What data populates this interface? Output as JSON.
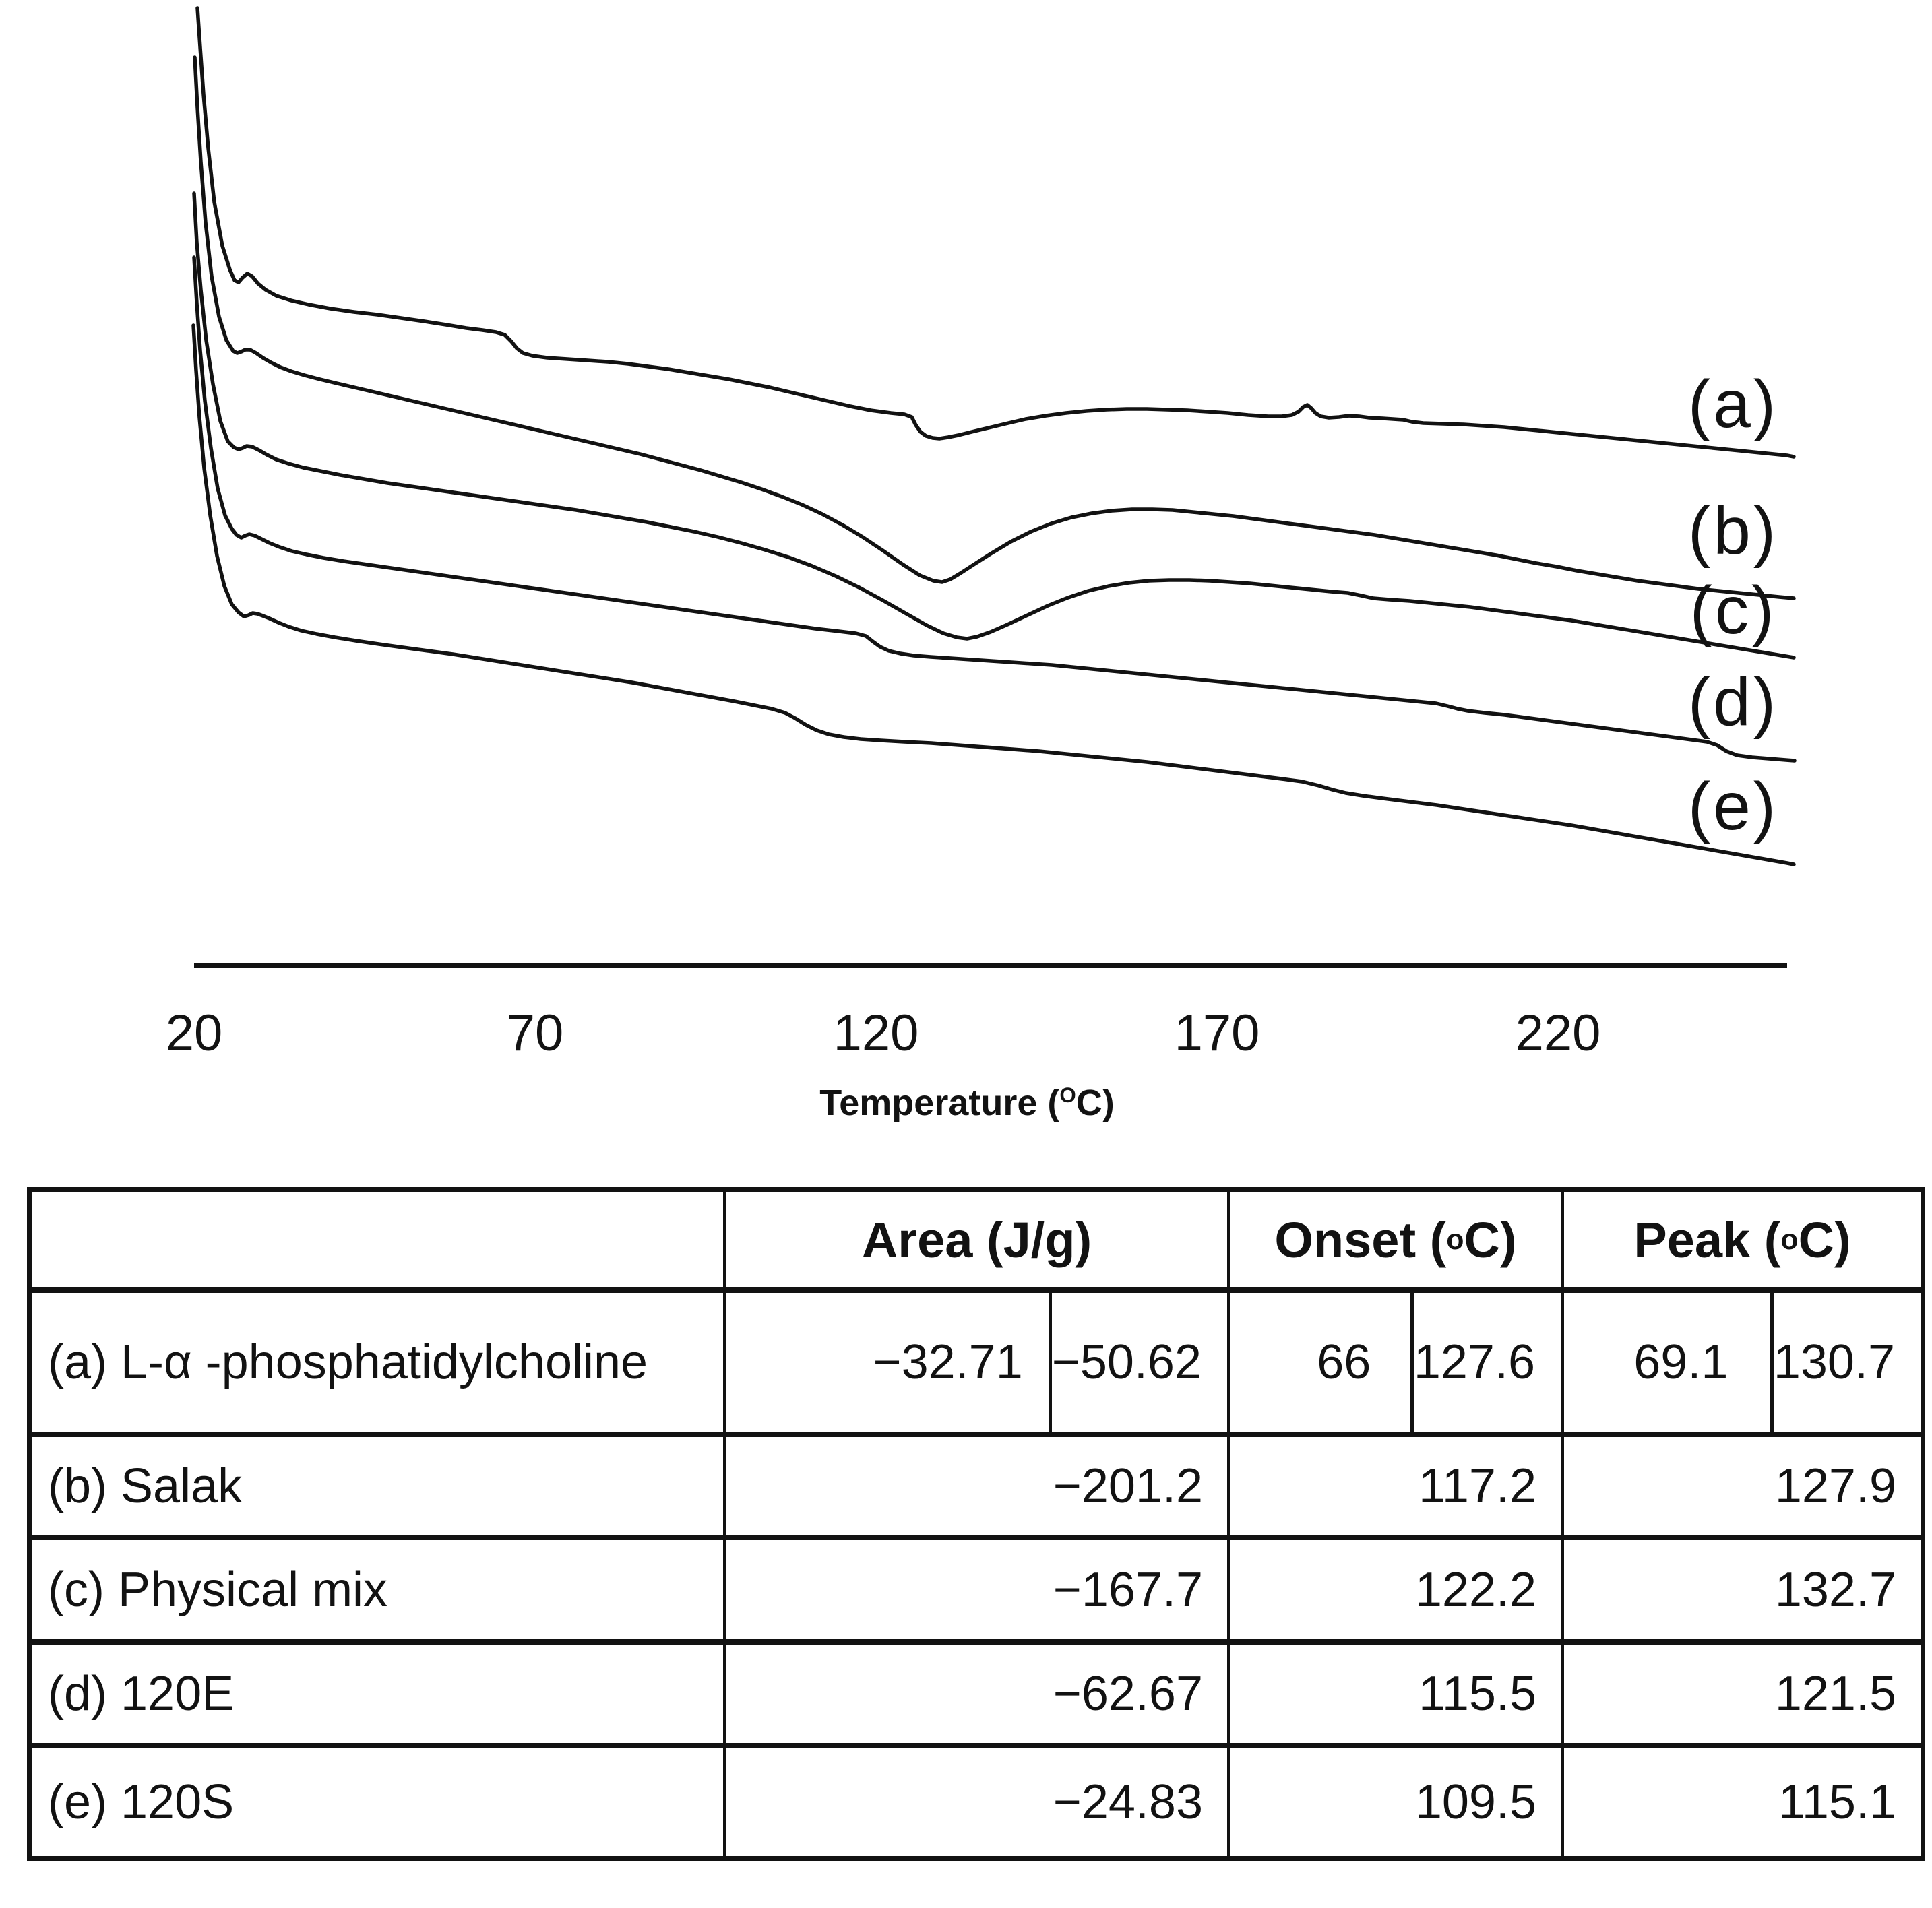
{
  "figure": {
    "background": "#ffffff",
    "ink": "#121212",
    "description": "DSC thermograms of five samples with summary table of thermal events"
  },
  "chart_data": {
    "type": "line",
    "title": "DSC thermogram curves (a)-(e), heat flow offset vertically, endotherm down",
    "xlabel_pre": "Temperature (",
    "xlabel_sup": "O",
    "xlabel_post": "C)",
    "x_ticks": [
      "20",
      "70",
      "120",
      "170",
      "220"
    ],
    "x_tick_values": [
      20,
      70,
      120,
      170,
      220
    ],
    "x_range": [
      20,
      252
    ],
    "ylabel": "",
    "grid": false,
    "legend_position": "inline-right",
    "series": [
      {
        "label": "(a)",
        "sample": "L-α -phosphatidylcholine",
        "area_J_per_g": [
          -32.71,
          -50.62
        ],
        "onset_C": [
          66,
          127.6
        ],
        "peak_C": [
          69.1,
          130.7
        ]
      },
      {
        "label": "(b)",
        "sample": "Salak",
        "area_J_per_g": [
          -201.2
        ],
        "onset_C": [
          117.2
        ],
        "peak_C": [
          127.9
        ]
      },
      {
        "label": "(c)",
        "sample": "Physical mix",
        "area_J_per_g": [
          -167.7
        ],
        "onset_C": [
          122.2
        ],
        "peak_C": [
          132.7
        ]
      },
      {
        "label": "(d)",
        "sample": "120E",
        "area_J_per_g": [
          -62.67
        ],
        "onset_C": [
          115.5
        ],
        "peak_C": [
          121.5
        ]
      },
      {
        "label": "(e)",
        "sample": "120S",
        "area_J_per_g": [
          -24.83
        ],
        "onset_C": [
          109.5
        ],
        "peak_C": [
          115.1
        ]
      }
    ],
    "axis_line": {
      "x1": 288,
      "x2": 2652,
      "y": 1433,
      "width": 8
    },
    "stroke_width": 5.5,
    "curve_paths": [
      "M293 12 L297 70 L302 140 L309 220 L318 300 L330 365 L341 400 L348 416 L354 419 L360 412 L367 406 L374 410 L383 421 L394 430 L410 439 L432 446 L458 452 L490 458 L525 463 L560 467 L595 472 L630 477 L662 482 L692 487 L716 490 L736 493 L749 497 L759 507 L767 517 L776 524 L790 528 L812 531 L842 533 L872 535 L902 537 L932 540 L962 544 L992 548 L1022 553 L1052 558 L1082 563 L1112 569 L1142 575 L1172 582 L1202 589 L1232 596 L1262 603 L1292 609 L1322 613 L1342 615 L1353 619 L1359 631 L1366 641 L1374 647 L1384 650 L1394 651 L1407 649 L1422 646 L1442 641 L1467 635 L1492 629 L1522 622 L1552 617 L1582 613 L1612 610 L1642 608 L1672 607 L1702 607 L1732 608 L1762 609 L1792 611 L1822 613 L1852 616 L1882 618 L1902 618 L1917 616 L1927 611 L1934 604 L1940 601 L1946 606 L1952 613 L1960 618 L1972 620 L1987 619 L2002 617 L2017 618 L2032 620 L2052 621 L2082 623 L2095 626 L2112 628 L2142 629 L2172 630 L2202 632 L2232 634 L2262 637 L2292 640 L2322 643 L2352 646 L2382 649 L2412 652 L2442 655 L2472 658 L2502 661 L2532 664 L2562 667 L2592 670 L2622 673 L2652 676 L2662 678",
      "M289 85 L293 160 L298 240 L305 330 L314 410 L325 470 L336 505 L346 521 L352 524 L358 522 L364 519 L371 519 L380 524 L390 531 L402 538 L416 545 L432 551 L452 557 L475 563 L500 569 L530 576 L560 583 L590 590 L620 597 L650 604 L680 611 L710 618 L740 625 L770 632 L800 639 L830 646 L860 653 L890 660 L920 667 L950 674 L980 682 L1010 690 L1040 698 L1070 707 L1100 716 L1130 726 L1160 737 L1190 749 L1220 763 L1250 779 L1280 797 L1310 817 L1340 838 L1365 854 L1385 862 L1398 864 L1410 860 L1425 851 L1445 838 L1470 822 L1500 804 L1530 789 L1560 777 L1590 768 L1620 762 L1650 758 L1680 756 L1710 756 L1740 757 L1770 760 L1800 763 L1830 766 L1860 770 L1890 774 L1920 778 L1950 782 L1980 786 L2010 790 L2040 794 L2070 799 L2100 804 L2130 809 L2160 814 L2190 819 L2220 824 L2250 830 L2280 836 L2310 841 L2340 847 L2370 852 L2400 857 L2430 862 L2460 866 L2490 870 L2520 874 L2550 877 L2580 880 L2610 883 L2640 886 L2662 888",
      "M288 287 L292 360 L298 430 L306 505 L316 570 L327 625 L338 655 L347 664 L354 667 L360 665 L366 662 L374 663 L384 668 L396 675 L410 682 L428 688 L450 694 L475 699 L505 705 L540 711 L575 717 L610 722 L645 727 L680 732 L715 737 L750 742 L785 747 L820 752 L855 757 L890 763 L925 769 L960 775 L995 782 L1030 789 L1065 797 L1100 806 L1135 816 L1170 827 L1205 840 L1240 855 L1275 872 L1310 891 L1345 911 L1375 928 L1400 940 L1420 946 L1435 948 L1450 945 L1470 938 L1495 927 L1525 913 L1555 899 L1585 887 L1615 877 L1645 870 L1675 865 L1705 862 L1735 861 L1765 861 L1795 862 L1825 864 L1855 866 L1885 869 L1915 872 L1945 875 L1975 878 L2000 880 L2020 884 L2038 888 L2062 890 L2092 892 L2122 895 L2152 898 L2182 901 L2212 905 L2242 909 L2272 913 L2302 917 L2332 921 L2362 926 L2392 931 L2422 936 L2452 941 L2482 946 L2512 951 L2542 956 L2572 961 L2602 966 L2632 971 L2662 976",
      "M288 382 L292 450 L297 520 L304 595 L313 665 L323 725 L334 765 L344 785 L351 794 L358 798 L364 795 L370 793 L378 795 L388 800 L400 806 L415 812 L433 818 L455 823 L480 828 L510 833 L545 838 L580 843 L615 848 L650 853 L685 858 L720 863 L755 868 L790 873 L825 878 L860 883 L895 888 L930 893 L965 898 L1000 903 L1035 908 L1070 913 L1105 918 L1140 923 L1175 928 L1210 933 L1245 937 L1270 940 L1285 944 L1295 952 L1306 960 L1319 966 L1336 970 L1356 973 L1381 975 L1411 977 L1441 979 L1471 981 L1501 983 L1531 985 L1561 987 L1591 990 L1621 993 L1651 996 L1681 999 L1711 1002 L1741 1005 L1771 1008 L1801 1011 L1831 1014 L1861 1017 L1891 1020 L1921 1023 L1951 1026 L1981 1029 L2011 1032 L2041 1035 L2071 1038 L2101 1041 L2131 1044 L2148 1048 L2163 1052 L2178 1055 L2203 1058 L2233 1061 L2263 1065 L2293 1069 L2323 1073 L2353 1077 L2383 1081 L2413 1085 L2443 1089 L2473 1093 L2503 1097 L2533 1101 L2548 1106 L2562 1115 L2578 1121 L2600 1124 L2625 1126 L2650 1128 L2663 1129",
      "M287 483 L291 550 L296 620 L303 695 L312 765 L322 825 L333 870 L344 897 L354 909 L362 915 L369 913 L375 910 L382 911 L390 914 L400 918 L413 924 L428 930 L447 936 L470 941 L497 946 L528 951 L562 956 L598 961 L635 966 L672 971 L710 977 L748 983 L786 989 L824 995 L862 1001 L900 1007 L938 1013 L976 1020 L1014 1027 L1052 1034 L1090 1041 L1120 1047 L1145 1052 L1165 1058 L1180 1066 L1196 1076 L1212 1084 L1230 1090 L1252 1094 L1277 1097 L1307 1099 L1342 1101 L1382 1103 L1422 1106 L1462 1109 L1502 1112 L1542 1115 L1582 1119 L1622 1123 L1662 1127 L1702 1131 L1742 1136 L1782 1141 L1822 1146 L1862 1151 L1902 1156 L1932 1160 L1957 1166 L1977 1172 L1997 1177 L2022 1181 L2052 1185 L2092 1190 L2132 1195 L2172 1201 L2212 1207 L2252 1213 L2292 1219 L2332 1225 L2372 1232 L2412 1239 L2452 1246 L2492 1253 L2532 1260 L2572 1267 L2612 1274 L2652 1281 L2662 1283"
    ]
  },
  "table": {
    "headers": {
      "area": "Area (J/g)",
      "onset_pre": "Onset (",
      "onset_sup": "o",
      "onset_post": "C)",
      "peak_pre": "Peak (",
      "peak_sup": "o",
      "peak_post": "C)"
    },
    "rows": [
      {
        "label": "(a) L-α -phosphatidylcholine",
        "area": [
          "−32.71",
          "−50.62"
        ],
        "onset": [
          "66",
          "127.6"
        ],
        "peak": [
          "69.1",
          "130.7"
        ]
      },
      {
        "label": "(b) Salak",
        "area": "−201.2",
        "onset": "117.2",
        "peak": "127.9"
      },
      {
        "label": "(c) Physical mix",
        "area": "−167.7",
        "onset": "122.2",
        "peak": "132.7"
      },
      {
        "label": "(d) 120E",
        "area": "−62.67",
        "onset": "115.5",
        "peak": "121.5"
      },
      {
        "label": "(e) 120S",
        "area": "−24.83",
        "onset": "109.5",
        "peak": "115.1"
      }
    ]
  }
}
